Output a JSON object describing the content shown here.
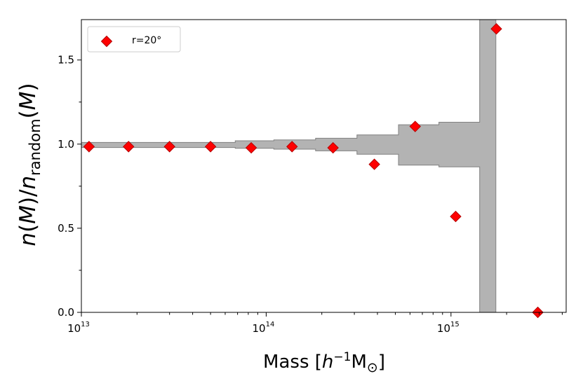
{
  "chart_data": {
    "type": "scatter",
    "xscale": "log",
    "xlim": [
      10000000000000.0,
      4200000000000000.0
    ],
    "ylim": [
      0,
      1.74
    ],
    "xlabel": "Mass [h⁻¹M⊙]",
    "ylabel": "n(M)/n_random(M)",
    "x_ticks": [
      {
        "value": 10000000000000.0,
        "label_base": "10",
        "label_exp": "13"
      },
      {
        "value": 100000000000000.0,
        "label_base": "10",
        "label_exp": "14"
      },
      {
        "value": 1000000000000000.0,
        "label_base": "10",
        "label_exp": "15"
      }
    ],
    "y_ticks": [
      {
        "value": 0.0,
        "label": "0.0"
      },
      {
        "value": 0.5,
        "label": "0.5"
      },
      {
        "value": 1.0,
        "label": "1.0"
      },
      {
        "value": 1.5,
        "label": "1.5"
      }
    ],
    "y_minor_ticks": [
      0.25,
      0.75,
      1.25
    ],
    "legend": {
      "placement": "top-left",
      "entries": [
        {
          "label": "r=20°",
          "marker": "diamond",
          "color": "#ff0000"
        }
      ]
    },
    "series": [
      {
        "name": "r=20°",
        "marker": "diamond",
        "color": "#ff0000",
        "edgecolor": "#b30000",
        "points": [
          {
            "x": 11000000000000.0,
            "y": 0.985
          },
          {
            "x": 18000000000000.0,
            "y": 0.985
          },
          {
            "x": 30000000000000.0,
            "y": 0.985
          },
          {
            "x": 50000000000000.0,
            "y": 0.985
          },
          {
            "x": 83000000000000.0,
            "y": 0.978
          },
          {
            "x": 138000000000000.0,
            "y": 0.985
          },
          {
            "x": 230000000000000.0,
            "y": 0.978
          },
          {
            "x": 385000000000000.0,
            "y": 0.88
          },
          {
            "x": 640000000000000.0,
            "y": 1.105
          },
          {
            "x": 1060000000000000.0,
            "y": 0.57
          },
          {
            "x": 1760000000000000.0,
            "y": 1.685
          },
          {
            "x": 2950000000000000.0,
            "y": 0.0
          }
        ]
      }
    ],
    "band": {
      "color": "#b3b3b3",
      "edgecolor": "#808080",
      "bins": [
        {
          "x0": 10000000000000.0,
          "x1": 23000000000000.0,
          "low": 0.98,
          "high": 1.01
        },
        {
          "x0": 23000000000000.0,
          "x1": 68000000000000.0,
          "low": 0.98,
          "high": 1.01
        },
        {
          "x0": 68000000000000.0,
          "x1": 110000000000000.0,
          "low": 0.975,
          "high": 1.02
        },
        {
          "x0": 110000000000000.0,
          "x1": 185000000000000.0,
          "low": 0.97,
          "high": 1.025
        },
        {
          "x0": 185000000000000.0,
          "x1": 310000000000000.0,
          "low": 0.96,
          "high": 1.035
        },
        {
          "x0": 310000000000000.0,
          "x1": 520000000000000.0,
          "low": 0.94,
          "high": 1.055
        },
        {
          "x0": 520000000000000.0,
          "x1": 860000000000000.0,
          "low": 0.875,
          "high": 1.115
        },
        {
          "x0": 860000000000000.0,
          "x1": 1430000000000000.0,
          "low": 0.865,
          "high": 1.13
        },
        {
          "x0": 1430000000000000.0,
          "x1": 1750000000000000.0,
          "low": 0.0,
          "high": 1.74
        }
      ]
    }
  }
}
